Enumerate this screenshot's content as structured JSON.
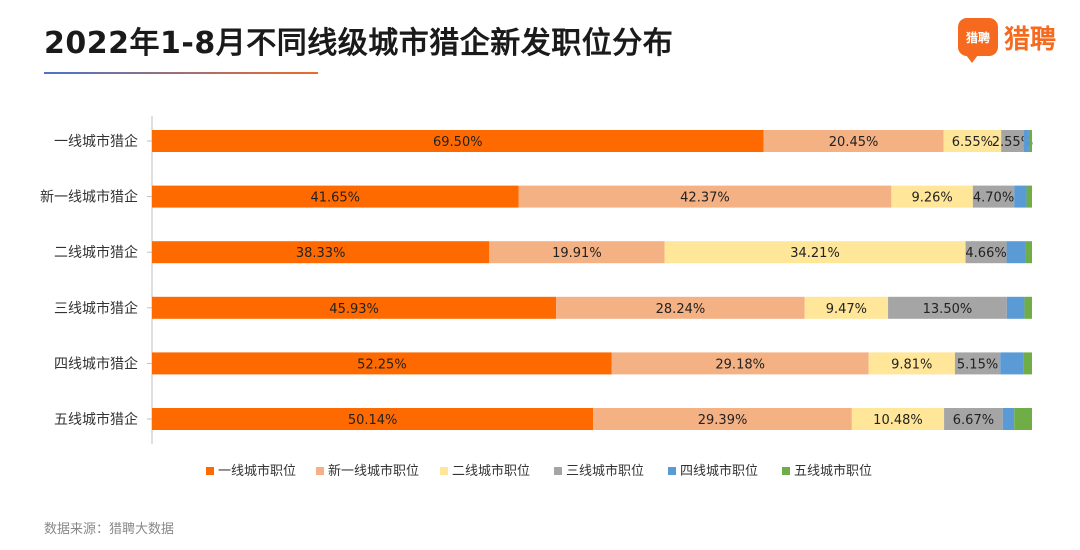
{
  "title": "2022年1-8月不同线级城市猎企新发职位分布",
  "logo": {
    "mark_text": "猎聘",
    "text": "猎聘"
  },
  "source": "数据来源：猎聘大数据",
  "chart_data": {
    "type": "bar",
    "orientation": "horizontal",
    "stacked": "percent",
    "title": "2022年1-8月不同线级城市猎企新发职位分布",
    "xlim": [
      0,
      100
    ],
    "grid": false,
    "legend_position": "bottom",
    "categories": [
      "一线城市猎企",
      "新一线城市猎企",
      "二线城市猎企",
      "三线城市猎企",
      "四线城市猎企",
      "五线城市猎企"
    ],
    "series": [
      {
        "name": "一线城市职位",
        "color": "#ff6a00",
        "values": [
          69.5,
          41.65,
          38.33,
          45.93,
          52.25,
          50.14
        ]
      },
      {
        "name": "新一线城市职位",
        "color": "#f4b184",
        "values": [
          20.45,
          42.37,
          19.91,
          28.24,
          29.18,
          29.39
        ]
      },
      {
        "name": "二线城市职位",
        "color": "#ffe699",
        "values": [
          6.55,
          9.26,
          34.21,
          9.47,
          9.81,
          10.48
        ]
      },
      {
        "name": "三线城市职位",
        "color": "#a5a5a5",
        "values": [
          2.55,
          4.7,
          4.66,
          13.5,
          5.15,
          6.67
        ]
      },
      {
        "name": "四线城市职位",
        "color": "#5b9bd5",
        "values": [
          0.6,
          1.4,
          2.1,
          2.0,
          2.6,
          1.3
        ]
      },
      {
        "name": "五线城市职位",
        "color": "#70ad47",
        "values": [
          0.35,
          0.62,
          0.79,
          0.86,
          1.01,
          2.02
        ]
      }
    ],
    "data_labels": [
      [
        "69.50%",
        "20.45%",
        "6.55%",
        "2.55%",
        "",
        ""
      ],
      [
        "41.65%",
        "42.37%",
        "9.26%",
        "4.70%",
        "",
        ""
      ],
      [
        "38.33%",
        "19.91%",
        "34.21%",
        "4.66%",
        "",
        ""
      ],
      [
        "45.93%",
        "28.24%",
        "9.47%",
        "13.50%",
        "",
        ""
      ],
      [
        "52.25%",
        "29.18%",
        "9.81%",
        "5.15%",
        "",
        ""
      ],
      [
        "50.14%",
        "29.39%",
        "10.48%",
        "6.67%",
        "",
        ""
      ]
    ]
  }
}
